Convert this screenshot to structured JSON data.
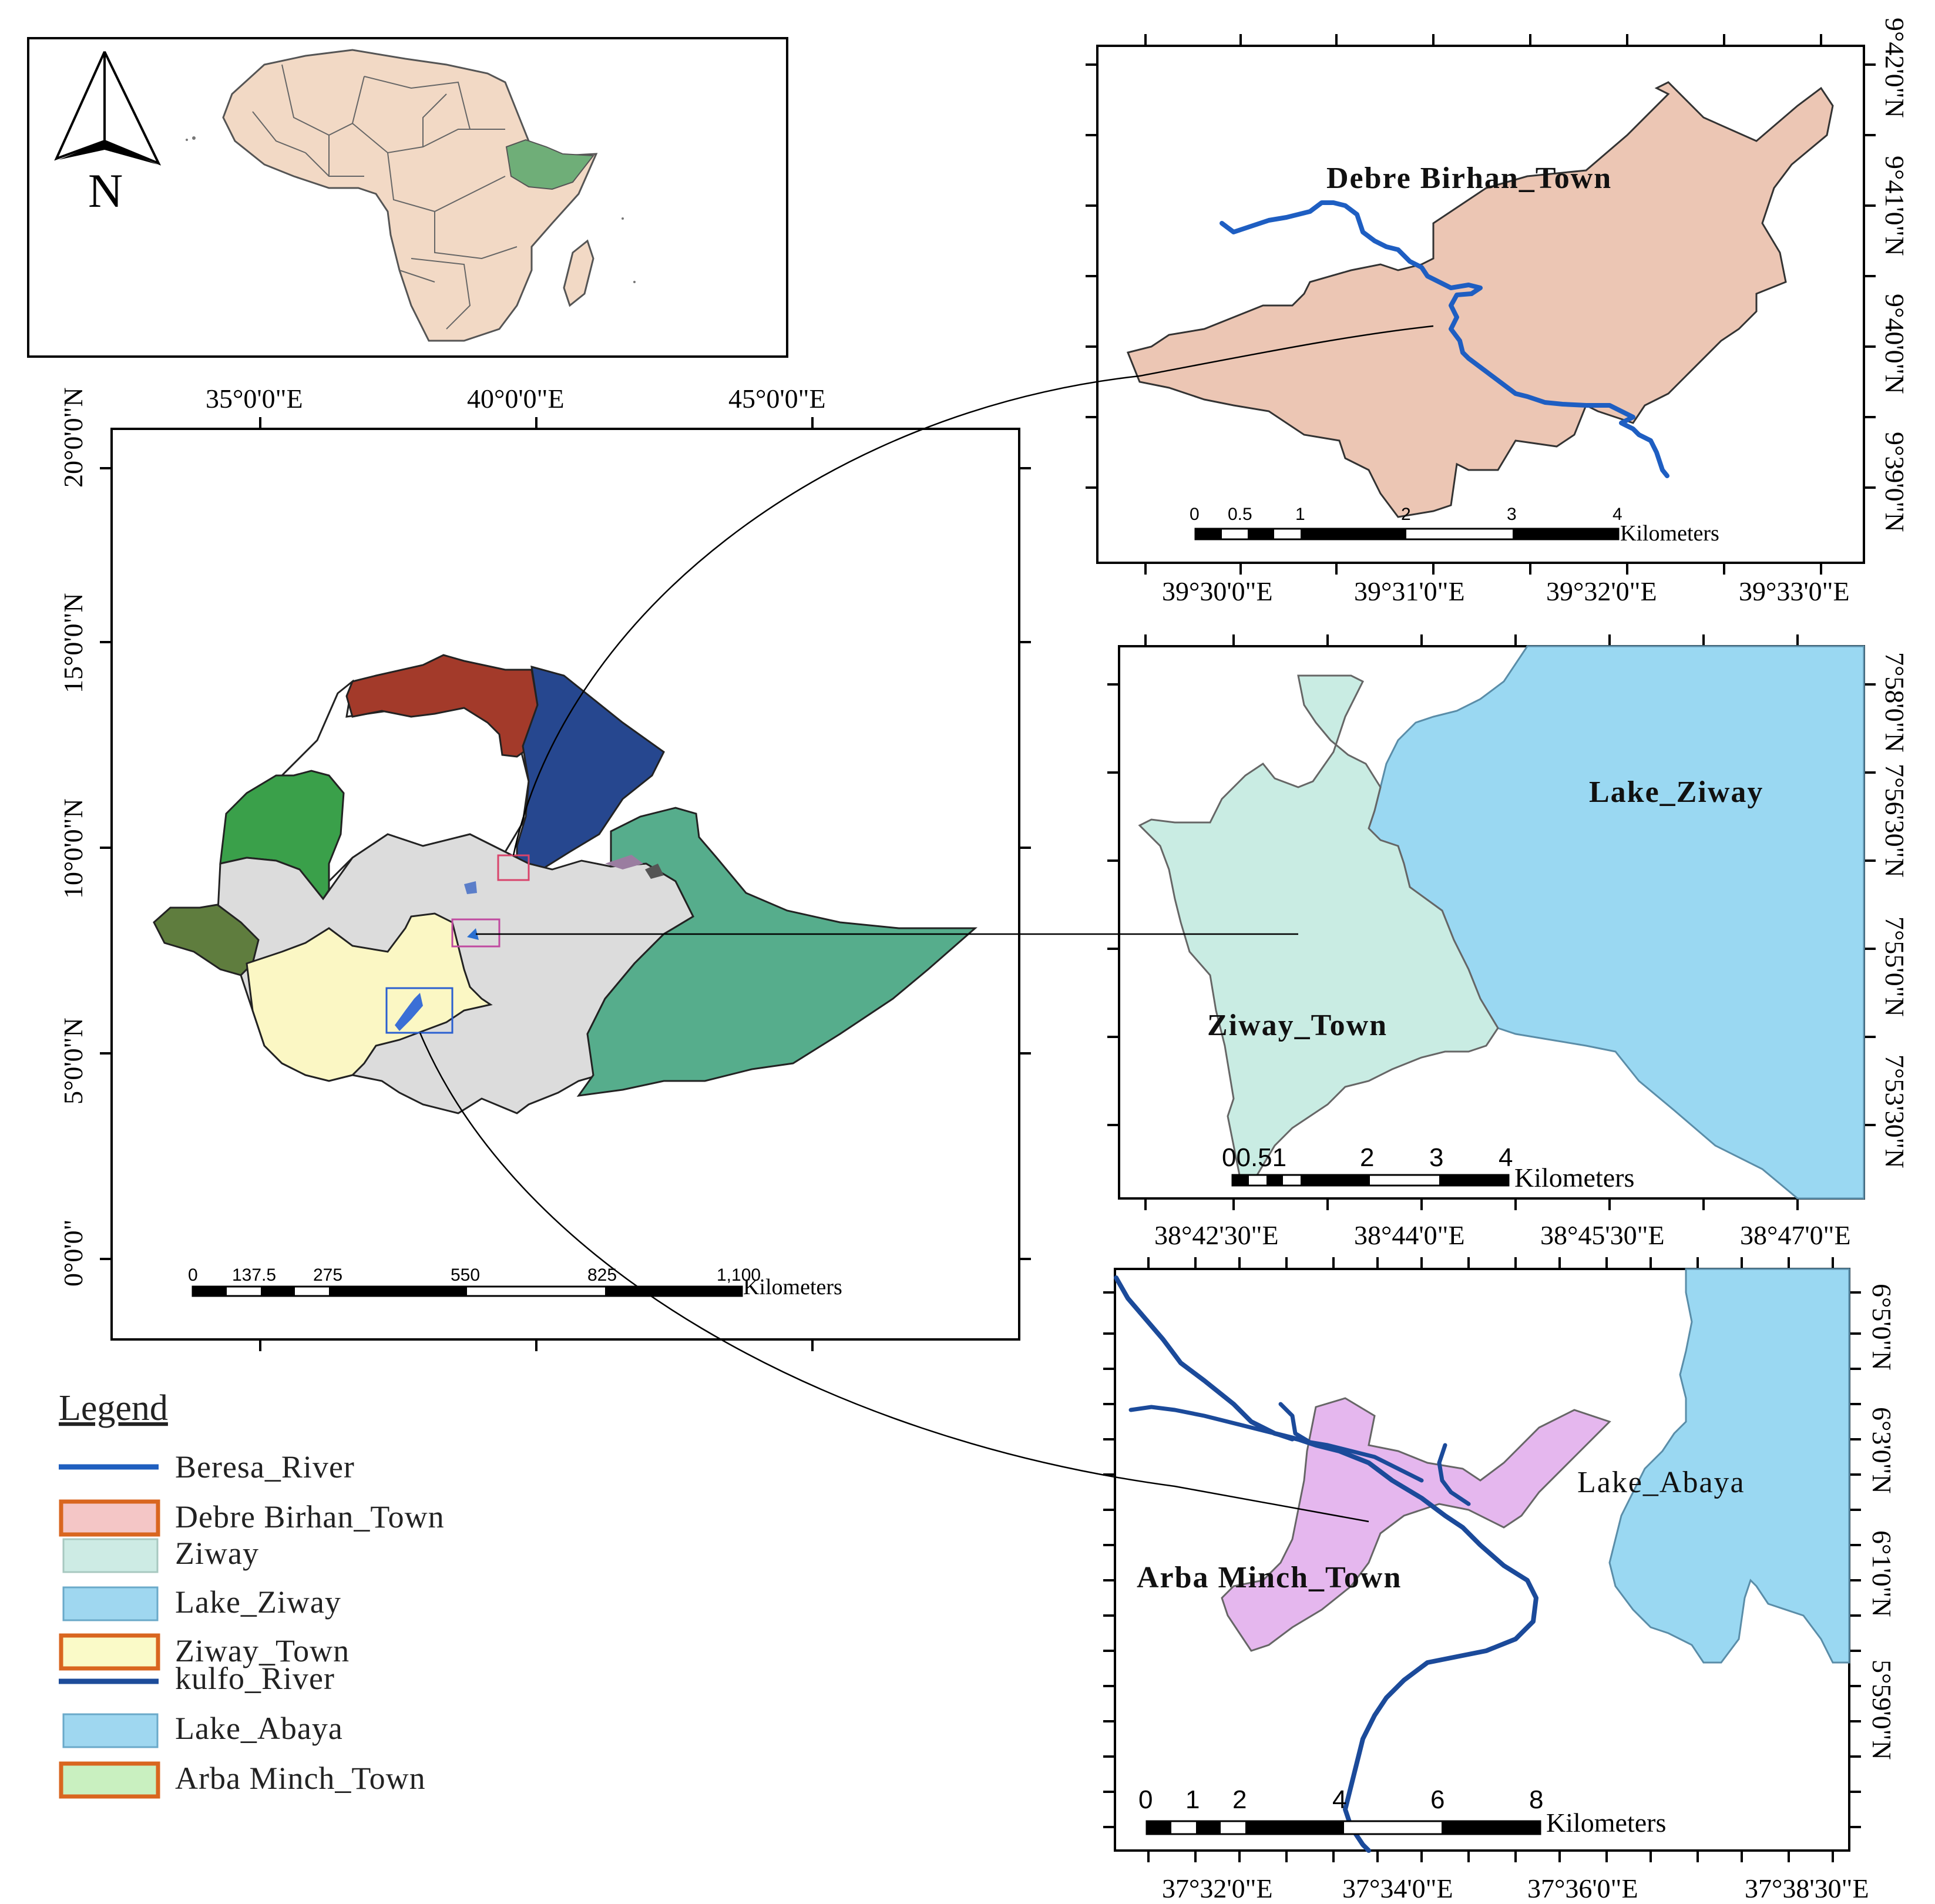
{
  "north_arrow": {
    "label": "N"
  },
  "main_map": {
    "x_labels": [
      "35°0'0\"E",
      "40°0'0\"E",
      "45°0'0\"E"
    ],
    "y_labels": [
      "20°0'0\"N",
      "15°0'0\"N",
      "10°0'0\"N",
      "5°0'0\"N",
      "0°0'0\""
    ],
    "scale": {
      "ticks": [
        "0",
        "137.5",
        "275",
        "550",
        "825",
        "1,100"
      ],
      "unit": "Kilometers"
    }
  },
  "debre_birhan_map": {
    "place_label": "Debre Birhan_Town",
    "x_labels": [
      "39°30'0\"E",
      "39°31'0\"E",
      "39°32'0\"E",
      "39°33'0\"E"
    ],
    "y_labels": [
      "9°42'0\"N",
      "9°41'0\"N",
      "9°40'0\"N",
      "9°40'0\"N",
      "9°39'0\"N",
      "9°39'0\"N"
    ],
    "scale": {
      "ticks": [
        "0",
        "0.5",
        "1",
        "2",
        "3",
        "4"
      ],
      "unit": "Kilometers"
    }
  },
  "ziway_map": {
    "lake_label": "Lake_Ziway",
    "town_label": "Ziway_Town",
    "x_labels": [
      "38°42'30\"E",
      "38°44'0\"E",
      "38°45'30\"E",
      "38°47'0\"E"
    ],
    "y_labels": [
      "7°58'0\"N",
      "7°56'30\"N",
      "7°55'0\"N",
      "7°53'30\"N"
    ],
    "scale": {
      "ticks": [
        "00.51",
        "2",
        "3",
        "4"
      ],
      "unit": "Kilometers"
    }
  },
  "arba_minch_map": {
    "lake_label": "Lake_Abaya",
    "town_label": "Arba Minch_Town",
    "x_labels": [
      "37°32'0\"E",
      "37°34'0\"E",
      "37°36'0\"E",
      "37°38'30\"E"
    ],
    "y_labels": [
      "6°5'0\"N",
      "6°3'0\"N",
      "6°1'0\"N",
      "5°59'0\"N"
    ],
    "scale": {
      "ticks": [
        "0",
        "1",
        "2",
        "4",
        "6",
        "8"
      ],
      "unit": "Kilometers"
    }
  },
  "legend": {
    "title": "Legend",
    "items": [
      {
        "label": "Beresa_River",
        "symbol": "line",
        "color": "#1f5fbf"
      },
      {
        "label": "Debre Birhan_Town",
        "symbol": "box",
        "fill": "#f4c6c6",
        "stroke": "#d9661f"
      },
      {
        "label": "Ziway",
        "symbol": "box",
        "fill": "#cdebe4",
        "stroke": "#a8c8c0"
      },
      {
        "label": "Lake_Ziway",
        "symbol": "box",
        "fill": "#9fd7f0",
        "stroke": "#6aa9c9"
      },
      {
        "label": "Ziway_Town",
        "symbol": "box",
        "fill": "#fafac8",
        "stroke": "#d9661f"
      },
      {
        "label": "kulfo_River",
        "symbol": "line",
        "color": "#1d4c9a"
      },
      {
        "label": "Lake_Abaya",
        "symbol": "box",
        "fill": "#9fd7f0",
        "stroke": "#6aa9c9"
      },
      {
        "label": "Arba Minch_Town",
        "symbol": "box",
        "fill": "#c9f0c0",
        "stroke": "#d9661f"
      }
    ]
  },
  "colors": {
    "africa_fill": "#f2d9c5",
    "ethiopia_highlight": "#6fae78",
    "tigray": "#a33a2a",
    "afar": "#26478f",
    "amhara_west": "#3aa04a",
    "gambela": "#5f7d3e",
    "snnpr": "#fbf7c4",
    "oromia": "#dcdcdc",
    "somali": "#56ad8c",
    "debre_birhan_fill": "#ecc6b4",
    "ziway_fill": "#c9ece3",
    "lake_fill": "#9ad8f2",
    "arba_minch_fill": "#e5b7ee",
    "river_blue": "#1e5ec2",
    "river_dark": "#1b4a9a"
  }
}
